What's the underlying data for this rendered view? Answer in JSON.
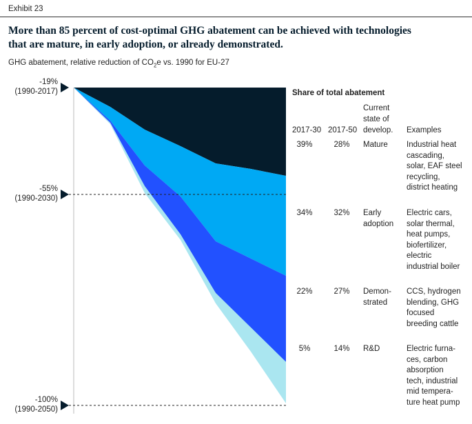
{
  "exhibit": "Exhibit 23",
  "title": [
    "More than 85 percent of cost-optimal GHG abatement can be achieved with technologies",
    "that are mature, in early adoption, or already demonstrated."
  ],
  "subtitle": {
    "before": "GHG abatement, relative reduction of CO",
    "sub": "2",
    "after": "e vs. 1990 for EU-27"
  },
  "markers": [
    [
      "-19%",
      "(1990-2017)"
    ],
    [
      "-55%",
      "(1990-2030)"
    ],
    [
      "-100%",
      "(1990-2050)"
    ]
  ],
  "table": {
    "heading": "Share of total abatement",
    "columns": [
      [
        "2017-30"
      ],
      [
        "2017-50"
      ],
      [
        "Current",
        "state of",
        "develop."
      ],
      [
        "Examples"
      ]
    ],
    "rows": [
      {
        "share_2017_30": "39%",
        "share_2017_50": "28%",
        "state": [
          "Mature"
        ],
        "examples": [
          "Industrial heat",
          "cascading,",
          "solar, EAF steel",
          "recycling,",
          "district heating"
        ]
      },
      {
        "share_2017_30": "34%",
        "share_2017_50": "32%",
        "state": [
          "Early",
          "adoption"
        ],
        "examples": [
          "Electric cars,",
          "solar thermal,",
          "heat pumps,",
          "biofertilizer,",
          "electric",
          "industrial boiler"
        ]
      },
      {
        "share_2017_30": "22%",
        "share_2017_50": "27%",
        "state": [
          "Demon-",
          "strated"
        ],
        "examples": [
          "CCS, hydrogen",
          "blending, GHG",
          "focused",
          "breeding cattle"
        ]
      },
      {
        "share_2017_30": "5%",
        "share_2017_50": "14%",
        "state": [
          "R&D"
        ],
        "examples": [
          "Electric furna-",
          "ces, carbon",
          "absorption",
          "tech, industrial",
          "mid tempera-",
          "ture heat pump"
        ]
      }
    ]
  }
}
